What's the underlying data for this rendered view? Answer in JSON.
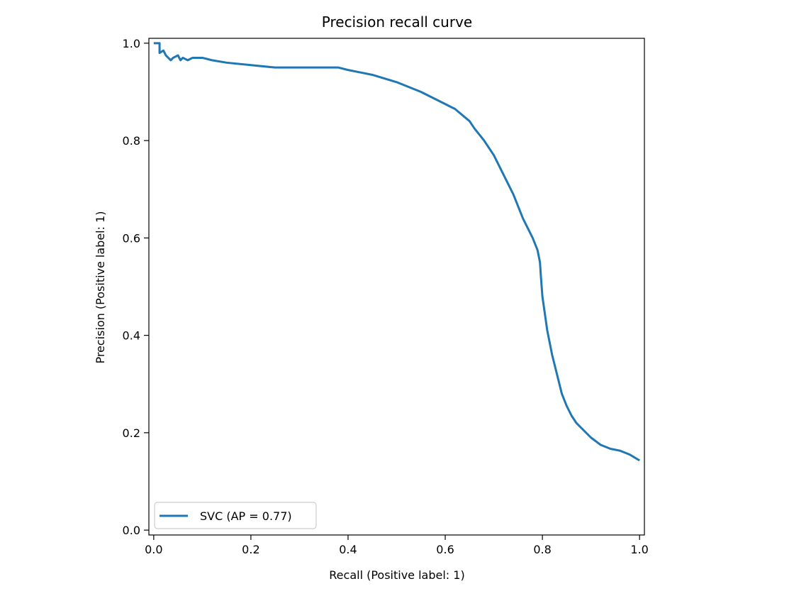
{
  "chart_data": {
    "type": "line",
    "title": "Precision recall curve",
    "xlabel": "Recall (Positive label: 1)",
    "ylabel": "Precision (Positive label: 1)",
    "xlim": [
      -0.01,
      1.01
    ],
    "ylim": [
      -0.01,
      1.01
    ],
    "xticks": [
      0.0,
      0.2,
      0.4,
      0.6,
      0.8,
      1.0
    ],
    "yticks": [
      0.0,
      0.2,
      0.4,
      0.6,
      0.8,
      1.0
    ],
    "xtick_labels": [
      "0.0",
      "0.2",
      "0.4",
      "0.6",
      "0.8",
      "1.0"
    ],
    "ytick_labels": [
      "0.0",
      "0.2",
      "0.4",
      "0.6",
      "0.8",
      "1.0"
    ],
    "grid": false,
    "legend_position": "lower-left",
    "series": [
      {
        "name": "SVC (AP = 0.77)",
        "color": "#1f77b4",
        "x": [
          0.0,
          0.012,
          0.012,
          0.02,
          0.025,
          0.03,
          0.035,
          0.04,
          0.05,
          0.055,
          0.06,
          0.07,
          0.08,
          0.1,
          0.12,
          0.15,
          0.2,
          0.25,
          0.3,
          0.35,
          0.38,
          0.4,
          0.45,
          0.5,
          0.55,
          0.6,
          0.62,
          0.65,
          0.66,
          0.68,
          0.7,
          0.72,
          0.74,
          0.76,
          0.78,
          0.79,
          0.795,
          0.797,
          0.8,
          0.81,
          0.82,
          0.83,
          0.84,
          0.85,
          0.86,
          0.87,
          0.88,
          0.9,
          0.92,
          0.94,
          0.96,
          0.98,
          1.0
        ],
        "y": [
          1.0,
          1.0,
          0.98,
          0.985,
          0.975,
          0.97,
          0.965,
          0.97,
          0.975,
          0.965,
          0.97,
          0.965,
          0.97,
          0.97,
          0.965,
          0.96,
          0.955,
          0.95,
          0.95,
          0.95,
          0.95,
          0.945,
          0.935,
          0.92,
          0.9,
          0.875,
          0.865,
          0.84,
          0.825,
          0.8,
          0.77,
          0.73,
          0.69,
          0.64,
          0.6,
          0.575,
          0.55,
          0.52,
          0.48,
          0.41,
          0.36,
          0.32,
          0.28,
          0.255,
          0.235,
          0.22,
          0.21,
          0.19,
          0.175,
          0.167,
          0.163,
          0.155,
          0.143
        ]
      }
    ]
  }
}
